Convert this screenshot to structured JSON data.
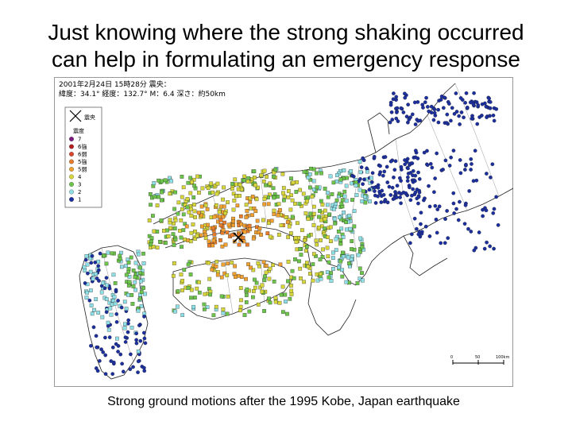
{
  "slide": {
    "title_line1": "Just knowing where the strong shaking occurred",
    "title_line2": "can help in formulating an emergency response",
    "caption": "Strong ground motions after the 1995 Kobe, Japan earthquake"
  },
  "map": {
    "header_line1": "2001年2月24日 15時28分 震央：",
    "header_line2": "緯度：34.1° 経度：132.7° M：6.4 深さ：約50km",
    "legend_title": "震度",
    "legend_epicenter": "震央",
    "legend_items": [
      {
        "label": "7",
        "color": "#7b1a7e"
      },
      {
        "label": "6強",
        "color": "#b31d1d"
      },
      {
        "label": "6弱",
        "color": "#d9452b"
      },
      {
        "label": "5強",
        "color": "#e87c2a"
      },
      {
        "label": "5弱",
        "color": "#f0a030"
      },
      {
        "label": "4",
        "color": "#d6d63a"
      },
      {
        "label": "3",
        "color": "#6cc54a"
      },
      {
        "label": "2",
        "color": "#8fe0e6"
      },
      {
        "label": "1",
        "color": "#1c2f9e"
      }
    ],
    "scale_labels": [
      "0",
      "50",
      "100km"
    ]
  }
}
